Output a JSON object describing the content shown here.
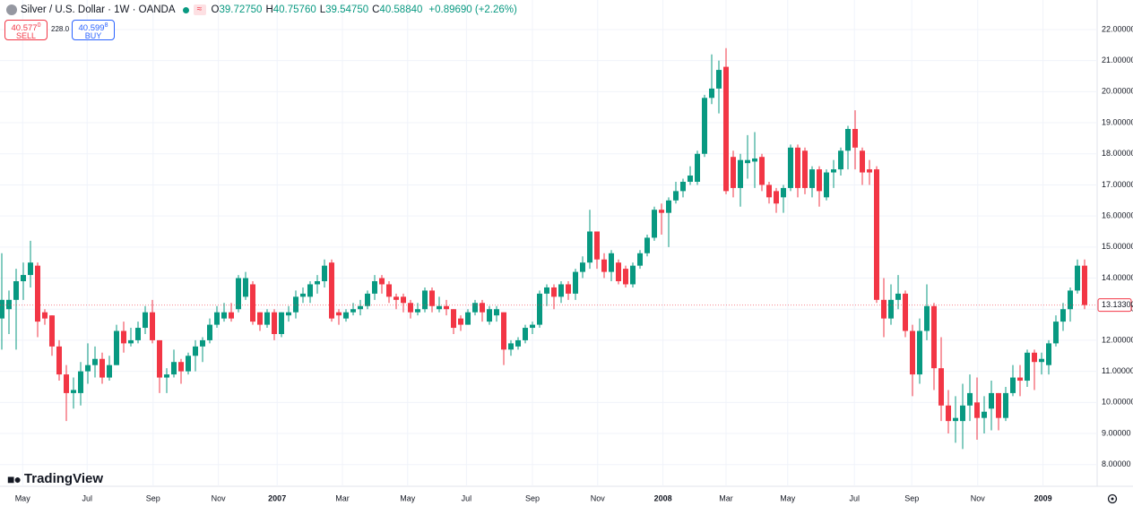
{
  "header": {
    "symbol": "Silver / U.S. Dollar · 1W · OANDA",
    "signal": "≈",
    "ohlc": [
      {
        "key": "O",
        "value": "39.72750"
      },
      {
        "key": "H",
        "value": "40.75760"
      },
      {
        "key": "L",
        "value": "39.54750"
      },
      {
        "key": "C",
        "value": "40.58840"
      }
    ],
    "change": "+0.89690 (+2.26%)"
  },
  "trade": {
    "sell": {
      "price": "40.577",
      "pip": "0",
      "label": "SELL"
    },
    "spread": "228.0",
    "buy": {
      "price": "40.599",
      "pip": "8",
      "label": "BUY"
    }
  },
  "logo": "TradingView",
  "chart_data": {
    "type": "candlestick",
    "up_color": "#089981",
    "down_color": "#f23645",
    "grid": true,
    "ylim": [
      7.3,
      22.95
    ],
    "yticks": [
      {
        "value": 8,
        "label": "8.00000"
      },
      {
        "value": 9,
        "label": "9.00000"
      },
      {
        "value": 10,
        "label": "10.00000"
      },
      {
        "value": 11,
        "label": "11.00000"
      },
      {
        "value": 12,
        "label": "12.00000"
      },
      {
        "value": 13,
        "label": "13.00000"
      },
      {
        "value": 14,
        "label": "14.00000"
      },
      {
        "value": 15,
        "label": "15.00000"
      },
      {
        "value": 16,
        "label": "16.00000"
      },
      {
        "value": 17,
        "label": "17.00000"
      },
      {
        "value": 18,
        "label": "18.00000"
      },
      {
        "value": 19,
        "label": "19.00000"
      },
      {
        "value": 20,
        "label": "20.00000"
      },
      {
        "value": 21,
        "label": "21.00000"
      },
      {
        "value": 22,
        "label": "22.00000"
      }
    ],
    "xticks": [
      {
        "value": 2.9,
        "label": "May"
      },
      {
        "value": 11.9,
        "label": "Jul"
      },
      {
        "value": 21.1,
        "label": "Sep"
      },
      {
        "value": 30.2,
        "label": "Nov"
      },
      {
        "value": 38.4,
        "label": "2007",
        "bold": true
      },
      {
        "value": 47.5,
        "label": "Mar"
      },
      {
        "value": 56.6,
        "label": "May"
      },
      {
        "value": 64.8,
        "label": "Jul"
      },
      {
        "value": 74,
        "label": "Sep"
      },
      {
        "value": 83.1,
        "label": "Nov"
      },
      {
        "value": 92.2,
        "label": "2008",
        "bold": true
      },
      {
        "value": 101,
        "label": "Mar"
      },
      {
        "value": 109.6,
        "label": "May"
      },
      {
        "value": 118.9,
        "label": "Jul"
      },
      {
        "value": 126.9,
        "label": "Sep"
      },
      {
        "value": 136.1,
        "label": "Nov"
      },
      {
        "value": 145.2,
        "label": "2009",
        "bold": true
      }
    ],
    "last_price": {
      "value": 13.133,
      "label": "13.13300"
    },
    "open": [
      12.7,
      13.0,
      13.3,
      13.9,
      14.1,
      14.4,
      12.9,
      12.8,
      11.8,
      10.9,
      10.3,
      10.3,
      11.0,
      11.2,
      11.4,
      10.8,
      11.2,
      12.3,
      11.9,
      12.0,
      12.4,
      12.9,
      12.0,
      10.8,
      10.9,
      11.3,
      11.0,
      11.5,
      11.8,
      12.0,
      12.5,
      12.7,
      12.9,
      13.0,
      13.4,
      13.8,
      12.9,
      12.5,
      12.9,
      12.2,
      12.8,
      12.9,
      13.4,
      13.4,
      13.8,
      13.9,
      14.5,
      12.9,
      12.7,
      12.9,
      13.0,
      13.1,
      13.5,
      14.0,
      13.8,
      13.4,
      13.4,
      13.2,
      12.9,
      13.0,
      13.6,
      13.0,
      13.1,
      13.0,
      12.7,
      12.5,
      12.9,
      13.2,
      12.6,
      12.8,
      12.9,
      11.7,
      11.8,
      12.0,
      12.4,
      12.5,
      13.5,
      13.7,
      13.4,
      13.8,
      13.5,
      14.2,
      14.5,
      15.5,
      14.6,
      14.2,
      14.5,
      14.3,
      13.8,
      14.4,
      14.8,
      15.3,
      16.2,
      16.1,
      16.5,
      16.8,
      17.1,
      17.1,
      18.0,
      19.8,
      20.1,
      20.8,
      17.9,
      16.9,
      17.7,
      17.75,
      17.9,
      17.0,
      16.8,
      16.6,
      16.9,
      18.2,
      18.1,
      16.9,
      17.5,
      16.6,
      17.4,
      17.5,
      18.1,
      18.8,
      18.1,
      17.5,
      17.5,
      13.3,
      12.7,
      13.3,
      13.5,
      12.3,
      10.9,
      12.3,
      13.1,
      11.1,
      9.9,
      9.4,
      9.4,
      9.9,
      10.0,
      9.5,
      9.8,
      10.3,
      9.5,
      10.3,
      10.8,
      10.7,
      11.6,
      11.3,
      11.2,
      11.9,
      12.6,
      13.0,
      13.6,
      14.4
    ],
    "high": [
      14.8,
      13.6,
      14.3,
      14.5,
      15.2,
      14.5,
      13.0,
      12.8,
      12.0,
      11.2,
      10.8,
      11.3,
      11.9,
      11.8,
      11.6,
      11.5,
      12.5,
      12.6,
      12.4,
      12.6,
      13.1,
      13.3,
      12.0,
      11.1,
      11.7,
      11.4,
      11.6,
      12.0,
      12.1,
      12.7,
      13.1,
      13.2,
      13.2,
      14.1,
      14.2,
      13.9,
      12.9,
      13.0,
      13.0,
      12.9,
      13.1,
      13.6,
      13.7,
      13.9,
      14.1,
      14.6,
      14.6,
      13.0,
      13.0,
      13.2,
      13.3,
      13.6,
      14.1,
      14.1,
      13.9,
      13.5,
      13.5,
      13.3,
      13.2,
      13.7,
      13.7,
      13.4,
      13.3,
      13.0,
      12.8,
      13.0,
      13.3,
      13.3,
      13.1,
      13.1,
      12.9,
      12.0,
      12.1,
      12.5,
      12.6,
      13.6,
      13.8,
      13.8,
      13.9,
      13.9,
      14.3,
      14.7,
      16.2,
      15.5,
      14.8,
      14.9,
      14.6,
      14.4,
      14.5,
      14.9,
      15.4,
      16.3,
      16.4,
      16.6,
      17.1,
      17.2,
      17.6,
      18.1,
      19.9,
      21.2,
      21.0,
      21.4,
      18.1,
      18.0,
      18.6,
      18.7,
      18.0,
      17.1,
      16.9,
      17.0,
      18.3,
      18.3,
      18.2,
      17.6,
      17.6,
      17.5,
      17.8,
      18.2,
      18.9,
      19.4,
      18.2,
      17.8,
      17.6,
      14.0,
      13.8,
      14.1,
      13.6,
      12.5,
      12.7,
      13.8,
      13.2,
      12.1,
      10.4,
      10.2,
      10.6,
      10.9,
      10.8,
      10.2,
      10.7,
      10.3,
      10.5,
      11.2,
      11.2,
      11.7,
      11.7,
      11.6,
      12.0,
      12.8,
      13.2,
      13.7,
      14.6,
      14.6
    ],
    "low": [
      11.7,
      12.2,
      11.7,
      13.3,
      13.7,
      12.1,
      12.5,
      11.5,
      10.7,
      9.4,
      9.8,
      9.9,
      10.6,
      10.8,
      10.6,
      10.7,
      11.2,
      11.6,
      11.8,
      11.9,
      12.2,
      11.9,
      10.3,
      10.3,
      10.8,
      10.6,
      10.9,
      11.0,
      11.3,
      11.9,
      12.4,
      12.6,
      12.6,
      12.9,
      13.3,
      12.5,
      12.3,
      12.4,
      12.0,
      12.1,
      12.6,
      12.7,
      13.2,
      13.2,
      13.5,
      13.7,
      12.6,
      12.5,
      12.6,
      12.8,
      12.8,
      13.0,
      13.3,
      13.5,
      13.2,
      13.0,
      12.9,
      12.7,
      12.8,
      12.9,
      12.9,
      12.9,
      12.8,
      12.2,
      12.3,
      12.5,
      12.8,
      12.6,
      12.5,
      12.6,
      11.2,
      11.5,
      11.7,
      11.9,
      12.2,
      12.4,
      13.1,
      13.0,
      13.2,
      13.3,
      13.3,
      14.0,
      14.3,
      14.3,
      14.0,
      13.9,
      13.8,
      13.7,
      13.7,
      14.3,
      14.7,
      15.2,
      15.4,
      15.0,
      16.4,
      16.6,
      17.0,
      17.0,
      17.9,
      19.6,
      19.3,
      16.7,
      16.6,
      16.3,
      17.2,
      16.9,
      16.8,
      16.4,
      16.1,
      16.1,
      16.8,
      16.6,
      16.7,
      16.6,
      16.3,
      16.5,
      16.9,
      17.3,
      17.5,
      17.5,
      17.0,
      17.0,
      13.2,
      12.1,
      12.5,
      13.0,
      12.1,
      10.2,
      10.6,
      12.0,
      10.4,
      9.4,
      9.0,
      8.7,
      8.5,
      9.4,
      8.8,
      9.0,
      9.1,
      9.1,
      9.4,
      10.2,
      10.2,
      10.5,
      10.4,
      10.9,
      10.9,
      11.8,
      12.3,
      12.6,
      13.5,
      13.0
    ],
    "close": [
      13.3,
      13.3,
      13.9,
      14.1,
      14.5,
      12.6,
      12.7,
      11.8,
      10.9,
      10.3,
      10.4,
      11.0,
      11.2,
      11.4,
      10.8,
      11.2,
      12.3,
      11.9,
      12.0,
      12.4,
      12.9,
      12.0,
      10.8,
      10.9,
      11.3,
      11.0,
      11.5,
      11.8,
      12.0,
      12.5,
      12.9,
      12.9,
      12.7,
      14.0,
      14.0,
      12.6,
      12.5,
      12.9,
      12.2,
      12.9,
      12.9,
      13.4,
      13.5,
      13.8,
      13.9,
      14.4,
      12.7,
      12.8,
      12.9,
      13.0,
      13.1,
      13.5,
      13.9,
      13.8,
      13.4,
      13.3,
      13.2,
      12.9,
      13.0,
      13.6,
      13.1,
      13.1,
      13.0,
      12.4,
      12.5,
      12.9,
      13.2,
      12.9,
      13.0,
      13.0,
      11.7,
      11.9,
      12.0,
      12.4,
      12.5,
      13.5,
      13.7,
      13.4,
      13.8,
      13.5,
      14.2,
      14.5,
      15.5,
      14.6,
      14.2,
      14.8,
      13.9,
      13.8,
      14.4,
      14.8,
      15.3,
      16.2,
      16.1,
      16.5,
      16.8,
      17.1,
      17.3,
      18.0,
      19.8,
      20.1,
      20.7,
      16.8,
      16.9,
      17.8,
      17.8,
      17.85,
      17.0,
      16.6,
      16.4,
      16.9,
      18.2,
      16.9,
      16.9,
      17.5,
      16.8,
      17.4,
      17.5,
      18.1,
      18.8,
      18.2,
      17.4,
      17.4,
      13.3,
      12.7,
      13.3,
      13.5,
      12.3,
      10.9,
      12.3,
      13.1,
      11.1,
      9.9,
      9.4,
      9.5,
      9.9,
      10.3,
      9.5,
      9.7,
      10.3,
      9.5,
      10.3,
      10.8,
      10.7,
      11.6,
      11.3,
      11.4,
      11.9,
      12.6,
      13.0,
      13.6,
      14.4,
      13.133
    ]
  }
}
